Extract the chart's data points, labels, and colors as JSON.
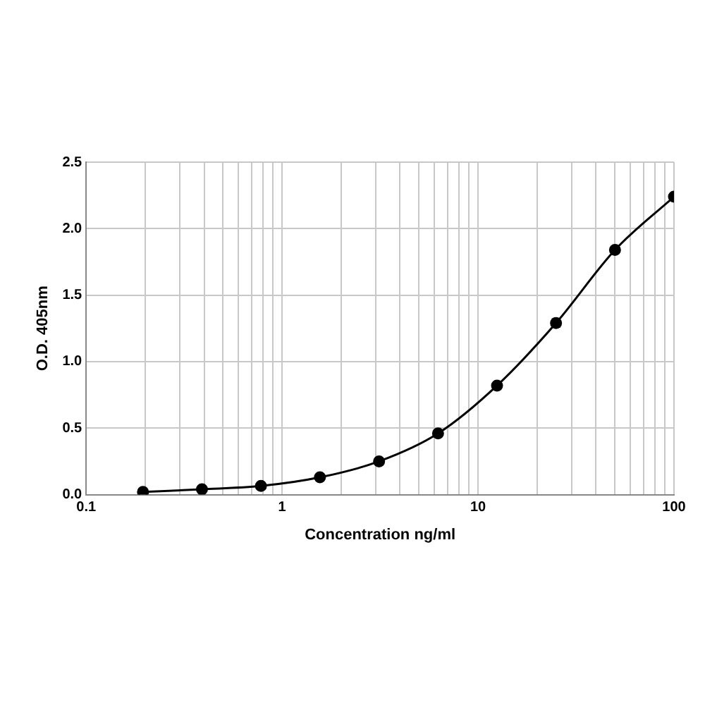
{
  "chart_data": {
    "type": "line",
    "xlabel": "Concentration ng/ml",
    "ylabel": "O.D. 405nm",
    "log": "x",
    "x": [
      0.195,
      0.39,
      0.78,
      1.56,
      3.125,
      6.25,
      12.5,
      25,
      50,
      100
    ],
    "series": [
      {
        "color": "#000000",
        "values": [
          0.02,
          0.04,
          0.065,
          0.13,
          0.25,
          0.46,
          0.82,
          1.29,
          1.84,
          2.24
        ],
        "errors": [
          null,
          null,
          null,
          null,
          null,
          null,
          null,
          0.03,
          null,
          null
        ]
      }
    ],
    "xlim": [
      0.1,
      100
    ],
    "xticks": [
      0.1,
      {
        "value": 0.2,
        "label": null
      },
      {
        "value": 0.3,
        "label": null
      },
      {
        "value": 0.4,
        "label": null
      },
      {
        "value": 0.5,
        "label": null
      },
      {
        "value": 0.6,
        "label": null
      },
      {
        "value": 0.7,
        "label": null
      },
      {
        "value": 0.8,
        "label": null
      },
      {
        "value": 0.9,
        "label": null
      },
      1,
      {
        "value": 2,
        "label": null
      },
      {
        "value": 3,
        "label": null
      },
      {
        "value": 4,
        "label": null
      },
      {
        "value": 5,
        "label": null
      },
      {
        "value": 6,
        "label": null
      },
      {
        "value": 7,
        "label": null
      },
      {
        "value": 8,
        "label": null
      },
      {
        "value": 9,
        "label": null
      },
      10,
      {
        "value": 20,
        "label": null
      },
      {
        "value": 30,
        "label": null
      },
      {
        "value": 40,
        "label": null
      },
      {
        "value": 50,
        "label": null
      },
      {
        "value": 60,
        "label": null
      },
      {
        "value": 70,
        "label": null
      },
      {
        "value": 80,
        "label": null
      },
      {
        "value": 90,
        "label": null
      },
      100
    ],
    "ylim": [
      0,
      2.5
    ],
    "yticks": [
      {
        "value": 0,
        "label": "0.0"
      },
      {
        "value": 0.5,
        "label": "0.5"
      },
      {
        "value": 1,
        "label": "1.0"
      },
      {
        "value": 1.5,
        "label": "1.5"
      },
      {
        "value": 2,
        "label": "2.0"
      },
      {
        "value": 2.5,
        "label": "2.5"
      }
    ],
    "grid": true,
    "marker": "circle",
    "line_style": "solid",
    "legend": false
  }
}
